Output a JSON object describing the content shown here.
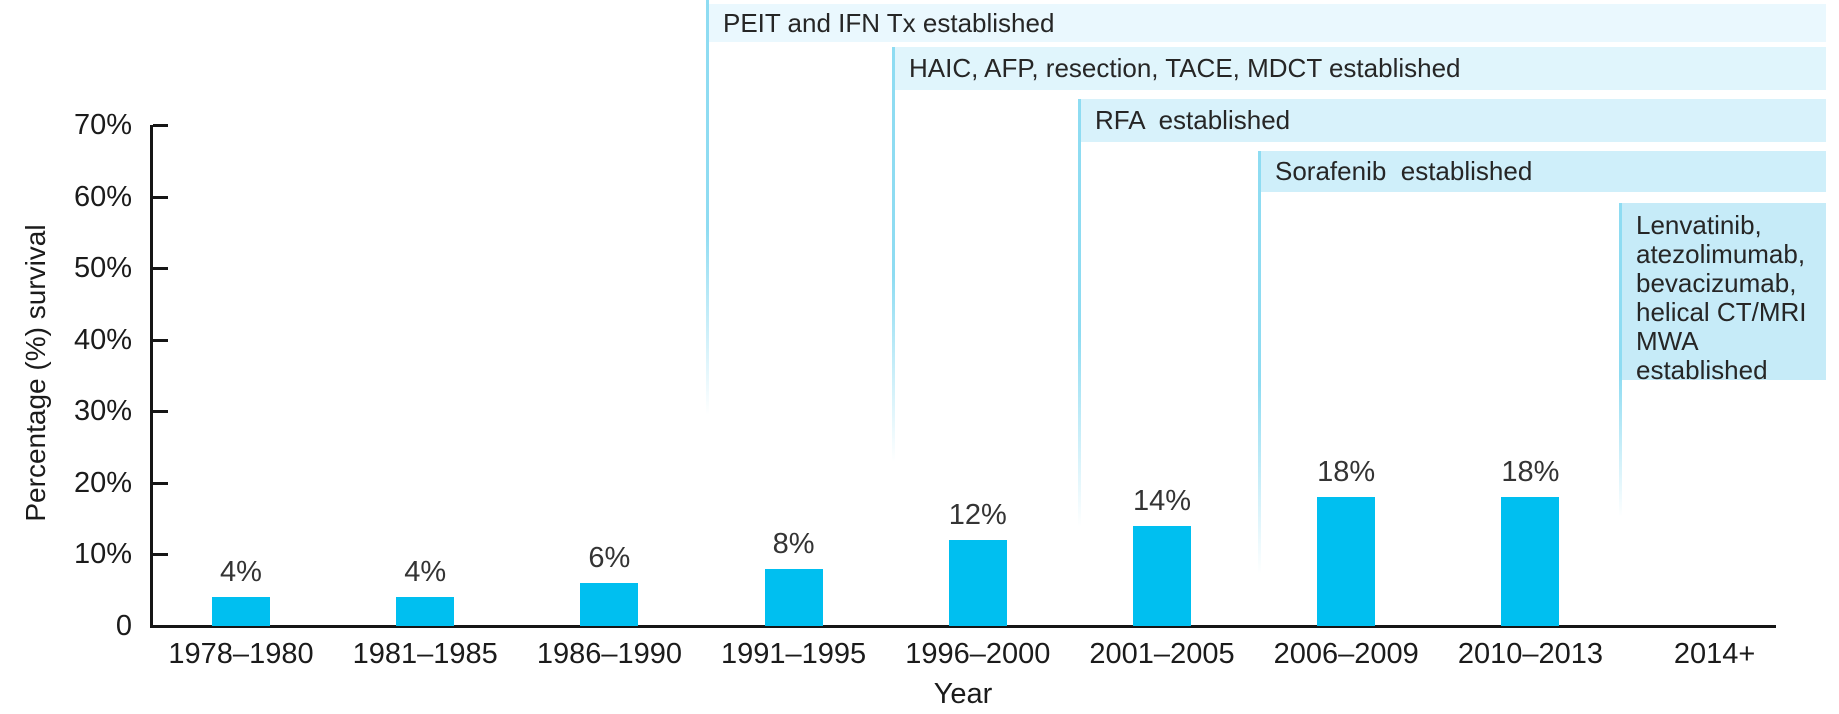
{
  "chart_data": {
    "type": "bar",
    "title": "",
    "xlabel": "Year",
    "ylabel": "Percentage (%) survival",
    "categories": [
      "1978–1980",
      "1981–1985",
      "1986–1990",
      "1991–1995",
      "1996–2000",
      "2001–2005",
      "2006–2009",
      "2010–2013",
      "2014+"
    ],
    "values": [
      4,
      4,
      6,
      8,
      12,
      14,
      18,
      18,
      null
    ],
    "bar_labels": [
      "4%",
      "4%",
      "6%",
      "8%",
      "12%",
      "14%",
      "18%",
      "18%",
      null
    ],
    "ylim": [
      0,
      70
    ],
    "y_tick_values": [
      70,
      60,
      50,
      40,
      30,
      20,
      10,
      0
    ],
    "y_tick_labels": [
      "70%",
      "60%",
      "50%",
      "40%",
      "30%",
      "20%",
      "10%",
      "0"
    ],
    "grid": "off",
    "legend": "none",
    "bar_color": "#00bff0",
    "axis_color": "#161616",
    "leader_line_color": "#8edcf2",
    "annotations": [
      {
        "label": "PEIT and IFN Tx established",
        "starts_at_category": "1991–1995",
        "fill": "#eaf8fe"
      },
      {
        "label": "HAIC, AFP, resection, TACE, MDCT established",
        "starts_at_category": "1996–2000",
        "fill": "#e0f5fc"
      },
      {
        "label": "RFA  established",
        "starts_at_category": "2001–2005",
        "fill": "#d8f2fb"
      },
      {
        "label": "Sorafenib  established",
        "starts_at_category": "2006–2009",
        "fill": "#cfeffa"
      },
      {
        "label": "Lenvatinib,\natezolimumab,\nbevacizumab,\nhelical CT/MRI\nMWA\nestablished",
        "starts_at_category": "2014+",
        "fill": "#c6ebf8"
      }
    ]
  }
}
